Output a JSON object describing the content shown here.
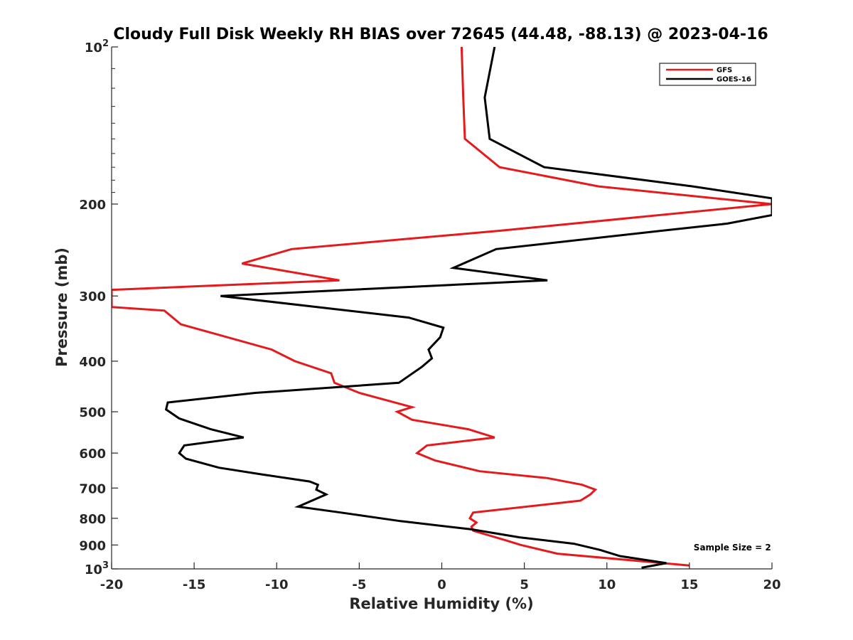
{
  "chart_data": {
    "type": "line",
    "title": "Cloudy Full Disk Weekly RH BIAS over 72645 (44.48, -88.13) @ 2023-04-16",
    "xlabel": "Relative Humidity (%)",
    "ylabel": "Pressure (mb)",
    "xlim": [
      -20,
      20
    ],
    "ylim": [
      100,
      1000
    ],
    "y_scale": "log",
    "y_reversed": true,
    "grid": false,
    "legend_position": "top-right",
    "x_ticks": [
      "-20",
      "-15",
      "-10",
      "-5",
      "0",
      "5",
      "10",
      "15",
      "20"
    ],
    "y_ticks": [
      {
        "value": 100,
        "label": "10",
        "exp": "2"
      },
      {
        "value": 200,
        "label": "200",
        "exp": ""
      },
      {
        "value": 300,
        "label": "300",
        "exp": ""
      },
      {
        "value": 400,
        "label": "400",
        "exp": ""
      },
      {
        "value": 500,
        "label": "500",
        "exp": ""
      },
      {
        "value": 600,
        "label": "600",
        "exp": ""
      },
      {
        "value": 700,
        "label": "700",
        "exp": ""
      },
      {
        "value": 800,
        "label": "800",
        "exp": ""
      },
      {
        "value": 900,
        "label": "900",
        "exp": ""
      },
      {
        "value": 1000,
        "label": "10",
        "exp": "3"
      }
    ],
    "series": [
      {
        "name": "GFS",
        "color": "#e41a1c",
        "points": [
          [
            1.2,
            100
          ],
          [
            1.3,
            125
          ],
          [
            1.4,
            150
          ],
          [
            3.5,
            170
          ],
          [
            9.5,
            185
          ],
          [
            20,
            200
          ],
          [
            3.5,
            225
          ],
          [
            -9.1,
            244
          ],
          [
            -12.1,
            260
          ],
          [
            -6.2,
            280
          ],
          [
            -20,
            292
          ],
          [
            -20,
            315
          ],
          [
            -16.8,
            320
          ],
          [
            -15.8,
            340
          ],
          [
            -10.3,
            380
          ],
          [
            -8.9,
            400
          ],
          [
            -6.7,
            422
          ],
          [
            -6.5,
            440
          ],
          [
            -5,
            460
          ],
          [
            -1.8,
            490
          ],
          [
            -2.7,
            500
          ],
          [
            -1.8,
            518
          ],
          [
            1.6,
            540
          ],
          [
            3.2,
            560
          ],
          [
            -0.9,
            580
          ],
          [
            -1.5,
            600
          ],
          [
            -0.4,
            620
          ],
          [
            2.3,
            650
          ],
          [
            6.4,
            670
          ],
          [
            8.5,
            690
          ],
          [
            9.3,
            705
          ],
          [
            9.0,
            720
          ],
          [
            8.4,
            740
          ],
          [
            1.9,
            780
          ],
          [
            1.7,
            800
          ],
          [
            2.1,
            815
          ],
          [
            1.8,
            830
          ],
          [
            1.9,
            845
          ],
          [
            3.8,
            880
          ],
          [
            4.8,
            900
          ],
          [
            7.0,
            935
          ],
          [
            15.0,
            985
          ]
        ]
      },
      {
        "name": "GOES-16",
        "color": "#000000",
        "points": [
          [
            3.2,
            100
          ],
          [
            2.6,
            125
          ],
          [
            2.9,
            150
          ],
          [
            6.2,
            170
          ],
          [
            15.2,
            185
          ],
          [
            20,
            195
          ],
          [
            20,
            210
          ],
          [
            17.3,
            218
          ],
          [
            13.3,
            225
          ],
          [
            3.3,
            244
          ],
          [
            0.7,
            265
          ],
          [
            6.4,
            280
          ],
          [
            -13.4,
            300
          ],
          [
            -2.0,
            330
          ],
          [
            0.1,
            345
          ],
          [
            -0.1,
            360
          ],
          [
            -0.8,
            380
          ],
          [
            -0.6,
            395
          ],
          [
            -1.2,
            410
          ],
          [
            -2.6,
            440
          ],
          [
            -11.3,
            460
          ],
          [
            -16.6,
            480
          ],
          [
            -16.7,
            495
          ],
          [
            -15.9,
            515
          ],
          [
            -14,
            540
          ],
          [
            -12,
            560
          ],
          [
            -15.6,
            580
          ],
          [
            -15.9,
            600
          ],
          [
            -15.5,
            615
          ],
          [
            -13.5,
            640
          ],
          [
            -10.8,
            660
          ],
          [
            -8.0,
            680
          ],
          [
            -7.5,
            690
          ],
          [
            -7.6,
            705
          ],
          [
            -7.0,
            720
          ],
          [
            -8.7,
            760
          ],
          [
            -6.1,
            780
          ],
          [
            -2.5,
            810
          ],
          [
            1.8,
            840
          ],
          [
            4.7,
            870
          ],
          [
            8.0,
            895
          ],
          [
            9.6,
            920
          ],
          [
            10.8,
            945
          ],
          [
            13.6,
            975
          ],
          [
            12.1,
            995
          ]
        ]
      }
    ],
    "annotations": [
      {
        "text": "Sample Size = 2",
        "x": 17.6,
        "y": 910
      }
    ]
  }
}
